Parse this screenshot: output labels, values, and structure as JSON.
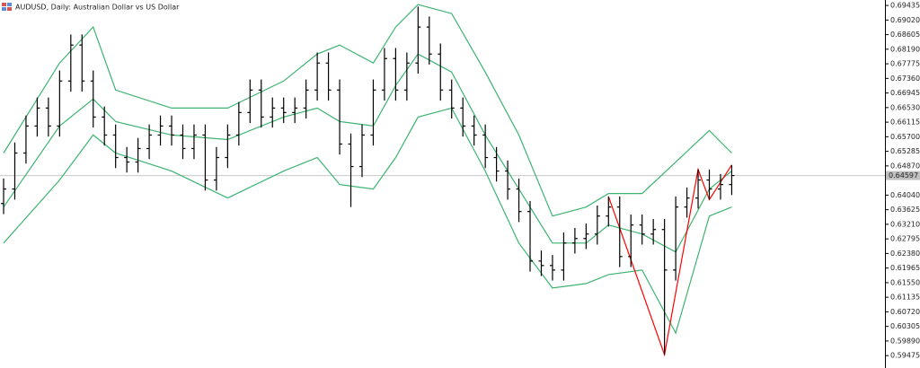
{
  "chart_data": {
    "type": "ohlc",
    "title": "AUDUSD, Daily:  Australian Dollar vs US Dollar",
    "color": "#000000",
    "xlim": [
      0,
      79
    ],
    "ylim": [
      0.5925,
      0.6959
    ],
    "yticks": [
      {
        "value": 0.69435,
        "label": "0.69435"
      },
      {
        "value": 0.6902,
        "label": "0.69020"
      },
      {
        "value": 0.68605,
        "label": "0.68605"
      },
      {
        "value": 0.6819,
        "label": "0.68190"
      },
      {
        "value": 0.67775,
        "label": "0.67775"
      },
      {
        "value": 0.6736,
        "label": "0.67360"
      },
      {
        "value": 0.66945,
        "label": "0.66945"
      },
      {
        "value": 0.6653,
        "label": "0.66530"
      },
      {
        "value": 0.66115,
        "label": "0.66115"
      },
      {
        "value": 0.657,
        "label": "0.65700"
      },
      {
        "value": 0.65285,
        "label": "0.65285"
      },
      {
        "value": 0.6487,
        "label": "0.64870"
      },
      {
        "value": 0.6404,
        "label": "0.64040"
      },
      {
        "value": 0.63625,
        "label": "0.63625"
      },
      {
        "value": 0.6321,
        "label": "0.63210"
      },
      {
        "value": 0.62795,
        "label": "0.62795"
      },
      {
        "value": 0.6238,
        "label": "0.62380"
      },
      {
        "value": 0.61965,
        "label": "0.61965"
      },
      {
        "value": 0.6155,
        "label": "0.61550"
      },
      {
        "value": 0.61135,
        "label": "0.61135"
      },
      {
        "value": 0.6072,
        "label": "0.60720"
      },
      {
        "value": 0.60305,
        "label": "0.60305"
      },
      {
        "value": 0.5989,
        "label": "0.59890"
      },
      {
        "value": 0.59475,
        "label": "0.59475"
      }
    ],
    "current_price": 0.64597,
    "open": [
      0.638,
      0.64213,
      0.65237,
      0.66005,
      0.66517,
      0.66005,
      0.67285,
      0.68309,
      0.67285,
      0.66261,
      0.65749,
      0.65109,
      0.64981,
      0.65365,
      0.65749,
      0.66005,
      0.65749,
      0.65365,
      0.65749,
      0.64469,
      0.65109,
      0.65749,
      0.66389,
      0.67029,
      0.66261,
      0.66517,
      0.66389,
      0.66517,
      0.67029,
      0.67797,
      0.67029,
      0.65493,
      0.64853,
      0.65749,
      0.67029,
      0.67925,
      0.67029,
      0.67797,
      0.68821,
      0.68053,
      0.67029,
      0.66517,
      0.66005,
      0.65749,
      0.65109,
      0.64725,
      0.64213,
      0.63573,
      0.62165,
      0.62037,
      0.61909,
      0.62677,
      0.62805,
      0.62933,
      0.63445,
      0.63701,
      0.62293,
      0.63189,
      0.62933,
      0.63061,
      0.61909,
      0.63701,
      0.63957,
      0.64469,
      0.64213,
      0.64341
    ],
    "high": [
      0.64513,
      0.65537,
      0.66305,
      0.66817,
      0.66817,
      0.67585,
      0.68609,
      0.68609,
      0.67585,
      0.66561,
      0.66049,
      0.65409,
      0.65665,
      0.66049,
      0.66305,
      0.66305,
      0.66049,
      0.66049,
      0.66049,
      0.65409,
      0.66049,
      0.66689,
      0.67329,
      0.67329,
      0.66817,
      0.66817,
      0.66817,
      0.67329,
      0.68097,
      0.68097,
      0.67329,
      0.65793,
      0.66049,
      0.67329,
      0.68225,
      0.68225,
      0.68097,
      0.694,
      0.69121,
      0.68353,
      0.67329,
      0.66817,
      0.66305,
      0.66049,
      0.65409,
      0.65025,
      0.64513,
      0.63873,
      0.62465,
      0.62337,
      0.62977,
      0.63105,
      0.63233,
      0.63745,
      0.64001,
      0.64001,
      0.63489,
      0.63489,
      0.63361,
      0.63361,
      0.64001,
      0.64257,
      0.64769,
      0.64769,
      0.64641,
      0.64897
    ],
    "low": [
      0.635,
      0.63913,
      0.64937,
      0.65705,
      0.65705,
      0.65705,
      0.66985,
      0.66985,
      0.65961,
      0.65449,
      0.64809,
      0.64681,
      0.64681,
      0.65065,
      0.65449,
      0.65449,
      0.65065,
      0.65065,
      0.64169,
      0.64169,
      0.64809,
      0.65449,
      0.66089,
      0.65961,
      0.65961,
      0.66089,
      0.66089,
      0.66217,
      0.66729,
      0.66729,
      0.65193,
      0.637,
      0.64553,
      0.65449,
      0.66729,
      0.66729,
      0.66729,
      0.67497,
      0.67753,
      0.66729,
      0.66217,
      0.65705,
      0.65449,
      0.64809,
      0.64425,
      0.63913,
      0.63273,
      0.61865,
      0.61737,
      0.61609,
      0.61609,
      0.62377,
      0.62505,
      0.62633,
      0.63145,
      0.61993,
      0.61993,
      0.62633,
      0.62633,
      0.595,
      0.61609,
      0.63401,
      0.63657,
      0.63913,
      0.63913,
      0.64041
    ],
    "close": [
      0.64213,
      0.65237,
      0.66005,
      0.66517,
      0.66005,
      0.67285,
      0.68309,
      0.67285,
      0.66261,
      0.65749,
      0.65109,
      0.64981,
      0.65365,
      0.65749,
      0.66005,
      0.65749,
      0.65365,
      0.65749,
      0.64469,
      0.65109,
      0.65749,
      0.66389,
      0.67029,
      0.66261,
      0.66517,
      0.66389,
      0.66517,
      0.67029,
      0.67797,
      0.67029,
      0.65493,
      0.64853,
      0.65749,
      0.67029,
      0.67925,
      0.67029,
      0.67797,
      0.68821,
      0.68053,
      0.67029,
      0.66517,
      0.66005,
      0.65749,
      0.65109,
      0.64725,
      0.64213,
      0.63573,
      0.62165,
      0.62037,
      0.61909,
      0.62677,
      0.62805,
      0.62933,
      0.63445,
      0.63701,
      0.62293,
      0.63189,
      0.62933,
      0.63061,
      0.61909,
      0.63701,
      0.63957,
      0.64469,
      0.64213,
      0.64341,
      0.64597
    ],
    "overlays": [
      {
        "type": "line",
        "color": "#3cb371",
        "x": [
          0,
          5,
          8,
          10,
          15,
          20,
          25,
          28,
          30,
          33,
          35,
          37,
          40,
          43,
          46,
          49,
          52,
          54,
          57,
          60,
          63,
          65
        ],
        "values": [
          0.65237,
          0.67797,
          0.68821,
          0.67029,
          0.66517,
          0.66517,
          0.67285,
          0.68053,
          0.68309,
          0.67797,
          0.68821,
          0.69461,
          0.69205,
          0.67541,
          0.65749,
          0.63445,
          0.63701,
          0.64085,
          0.64085,
          0.64981,
          0.65877,
          0.65237
        ]
      },
      {
        "type": "line",
        "color": "#3cb371",
        "x": [
          0,
          5,
          8,
          10,
          15,
          20,
          25,
          28,
          30,
          33,
          35,
          37,
          40,
          43,
          46,
          49,
          52,
          54,
          57,
          60,
          63,
          65
        ],
        "values": [
          0.63701,
          0.66005,
          0.66773,
          0.66133,
          0.65749,
          0.65621,
          0.66261,
          0.66517,
          0.66133,
          0.66005,
          0.67157,
          0.68053,
          0.67541,
          0.65749,
          0.64213,
          0.62677,
          0.62677,
          0.63189,
          0.62933,
          0.62421,
          0.64213,
          0.64725
        ]
      },
      {
        "type": "line",
        "color": "#3cb371",
        "x": [
          0,
          5,
          8,
          10,
          15,
          20,
          25,
          28,
          30,
          33,
          35,
          37,
          40,
          43,
          46,
          49,
          52,
          54,
          57,
          60,
          63,
          65
        ],
        "values": [
          0.62677,
          0.64469,
          0.65749,
          0.65237,
          0.64725,
          0.63957,
          0.64725,
          0.65109,
          0.64341,
          0.64213,
          0.65109,
          0.66261,
          0.66517,
          0.64725,
          0.62677,
          0.61397,
          0.61525,
          0.61781,
          0.61909,
          0.60117,
          0.63445,
          0.63701
        ]
      },
      {
        "type": "line",
        "color": "#ff0000",
        "x": [
          54,
          59,
          62,
          63,
          65
        ],
        "values": [
          0.64001,
          0.595,
          0.64769,
          0.63913,
          0.64897
        ]
      }
    ]
  }
}
